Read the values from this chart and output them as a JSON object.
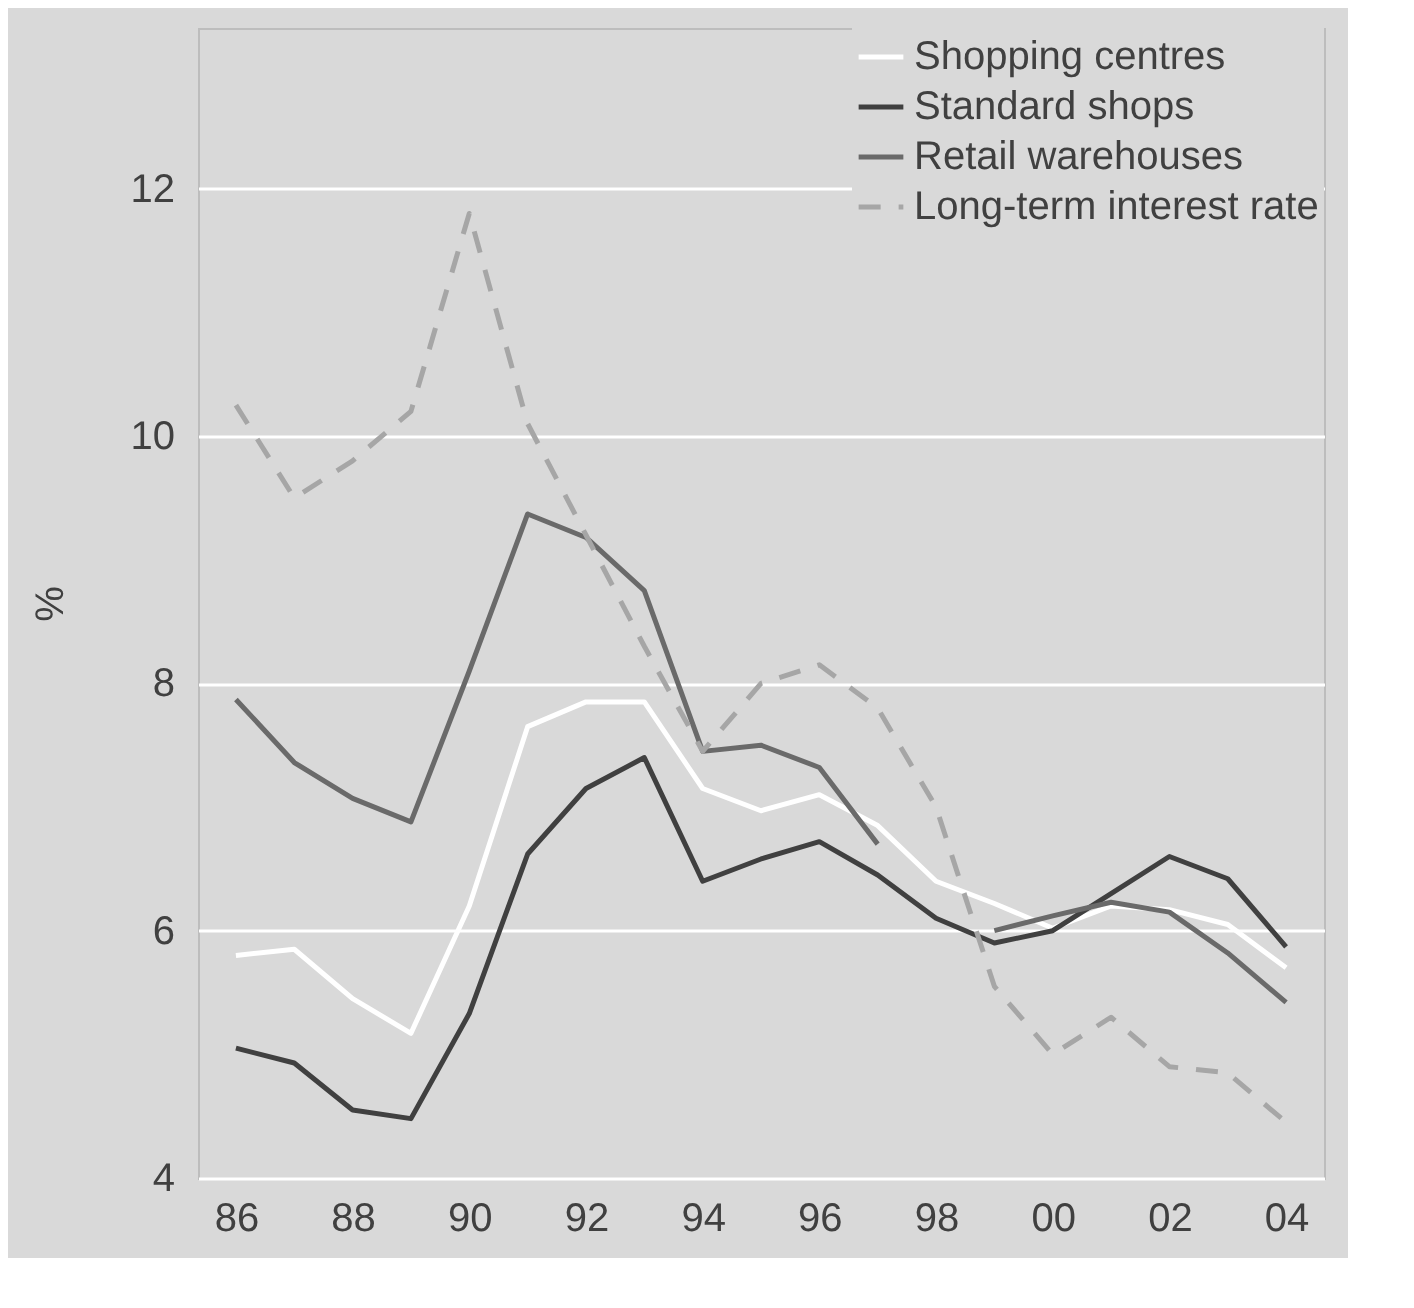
{
  "chart_data": {
    "type": "line",
    "ylabel": "%",
    "categories": [
      "86",
      null,
      "88",
      null,
      "90",
      null,
      "92",
      null,
      "94",
      null,
      "96",
      null,
      "98",
      null,
      "00",
      null,
      "02",
      null,
      "04"
    ],
    "ylim": [
      4,
      13.3
    ],
    "yticks": [
      4,
      6,
      8,
      10,
      12
    ],
    "grid": "y",
    "legend": "top right",
    "series": [
      {
        "name": "Shopping centres",
        "color": "#ffffff",
        "line_style": "solid",
        "values": [
          5.8,
          5.85,
          5.45,
          5.17,
          6.2,
          7.65,
          7.85,
          7.85,
          7.15,
          6.97,
          7.1,
          6.85,
          6.4,
          6.22,
          6.02,
          6.2,
          6.17,
          6.05,
          5.7
        ]
      },
      {
        "name": "Standard shops",
        "color": "#404040",
        "line_style": "solid",
        "values": [
          5.05,
          4.93,
          4.55,
          4.48,
          5.33,
          6.62,
          7.15,
          7.4,
          6.4,
          6.58,
          6.72,
          6.45,
          6.1,
          5.9,
          6.0,
          6.3,
          6.6,
          6.42,
          5.87
        ]
      },
      {
        "name": "Retail warehouses",
        "color": "#6a6a6a",
        "line_style": "solid",
        "values": [
          7.87,
          7.36,
          7.07,
          6.88,
          8.1,
          9.37,
          9.18,
          8.75,
          7.45,
          7.5,
          7.32,
          6.7,
          null,
          6.0,
          6.12,
          6.23,
          6.15,
          5.82,
          5.42
        ]
      },
      {
        "name": "Long-term interest rate",
        "color": "#a6a6a6",
        "line_style": "dashed",
        "values": [
          10.25,
          9.5,
          9.8,
          10.2,
          11.8,
          10.1,
          9.2,
          8.3,
          7.45,
          8.0,
          8.15,
          7.8,
          7.0,
          5.55,
          5.0,
          5.3,
          4.9,
          4.85,
          4.45
        ]
      }
    ]
  }
}
